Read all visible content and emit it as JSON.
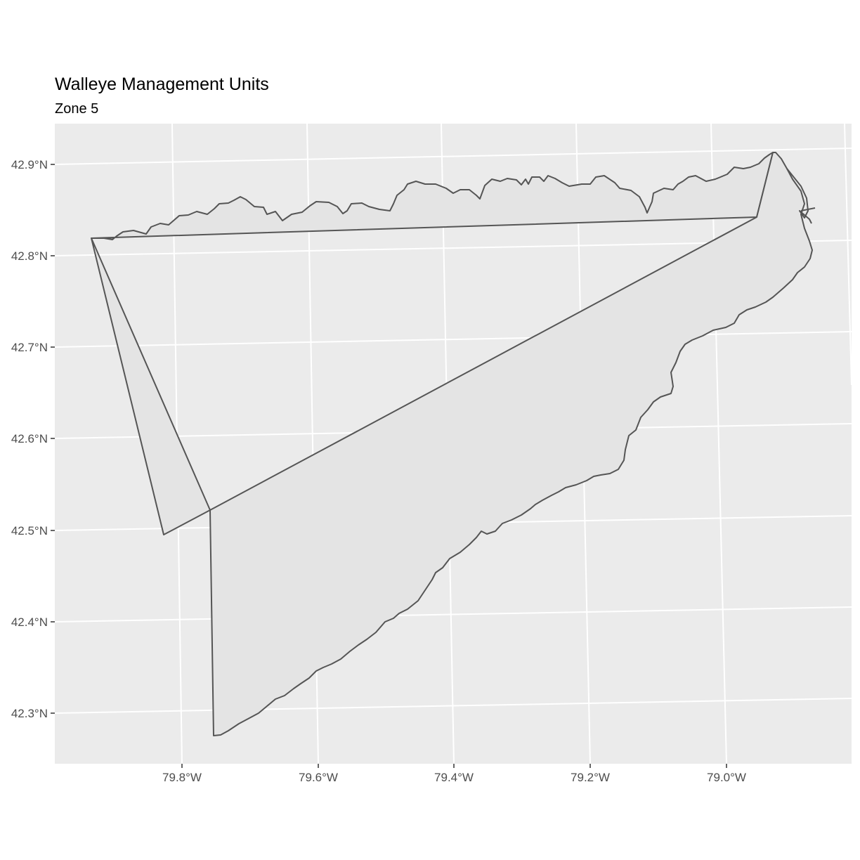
{
  "title": "Walleye Management Units",
  "subtitle": "Zone 5",
  "colors": {
    "panel_background": "#ebebeb",
    "grid": "#ffffff",
    "polygon_fill": "#e4e4e4",
    "polygon_outline": "#555555",
    "tick_label": "#4d4d4d"
  },
  "axes": {
    "x": {
      "ticks": [
        "79.8°W",
        "79.6°W",
        "79.4°W",
        "79.2°W",
        "79.0°W"
      ]
    },
    "y": {
      "ticks": [
        "42.3°N",
        "42.4°N",
        "42.5°N",
        "42.6°N",
        "42.7°N",
        "42.8°N",
        "42.9°N"
      ]
    }
  },
  "map_data": {
    "type": "polygon map",
    "projection": "projected (graticule slightly curved/rotated)",
    "features": [
      {
        "name": "Zone 5",
        "description": "Lake Erie eastern basin management zone polygons",
        "x_range_deg": [
          -79.95,
          -78.87
        ],
        "y_range_deg": [
          42.27,
          42.91
        ]
      }
    ]
  }
}
